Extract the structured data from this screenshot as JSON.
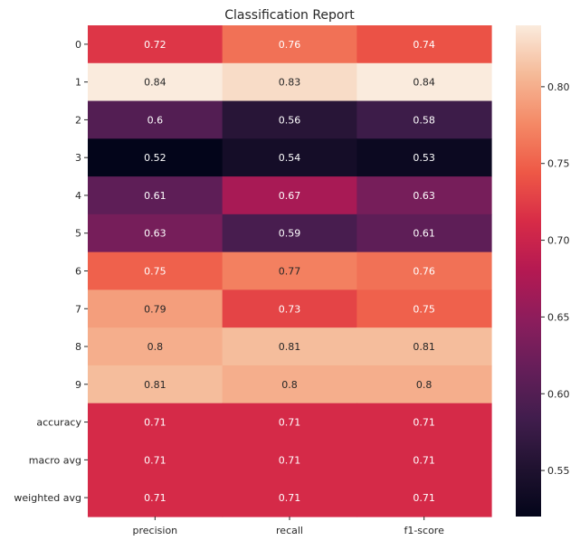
{
  "chart_data": {
    "type": "heatmap",
    "title": "Classification Report",
    "rows": [
      "0",
      "1",
      "2",
      "3",
      "4",
      "5",
      "6",
      "7",
      "8",
      "9",
      "accuracy",
      "macro avg",
      "weighted avg"
    ],
    "columns": [
      "precision",
      "recall",
      "f1-score"
    ],
    "values": [
      [
        0.72,
        0.76,
        0.74
      ],
      [
        0.84,
        0.83,
        0.84
      ],
      [
        0.6,
        0.56,
        0.58
      ],
      [
        0.52,
        0.54,
        0.53
      ],
      [
        0.61,
        0.67,
        0.63
      ],
      [
        0.63,
        0.59,
        0.61
      ],
      [
        0.75,
        0.77,
        0.76
      ],
      [
        0.79,
        0.73,
        0.75
      ],
      [
        0.8,
        0.81,
        0.81
      ],
      [
        0.81,
        0.8,
        0.8
      ],
      [
        0.71,
        0.71,
        0.71
      ],
      [
        0.71,
        0.71,
        0.71
      ],
      [
        0.71,
        0.71,
        0.71
      ]
    ],
    "colormap": "rocket",
    "value_range": [
      0.52,
      0.84
    ],
    "colorbar_ticks": [
      0.55,
      0.6,
      0.65,
      0.7,
      0.75,
      0.8
    ],
    "colorbar_tick_labels": [
      "0.55",
      "0.60",
      "0.65",
      "0.70",
      "0.75",
      "0.80"
    ],
    "grid": false,
    "legend": "colorbar-right"
  }
}
